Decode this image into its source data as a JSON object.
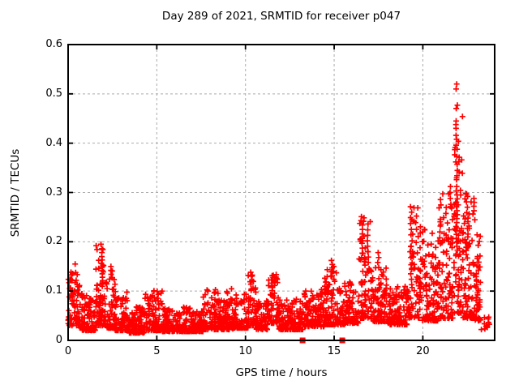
{
  "chart_data": {
    "type": "scatter",
    "title": "Day 289 of 2021, SRMTID for receiver p047",
    "xlabel": "GPS time / hours",
    "ylabel": "SRMTID / TECUs",
    "xlim": [
      0,
      24.05
    ],
    "ylim": [
      0,
      0.6
    ],
    "grid": true,
    "legend": false,
    "xticks": [
      {
        "v": 0,
        "label": "0"
      },
      {
        "v": 5,
        "label": "5"
      },
      {
        "v": 10,
        "label": "10"
      },
      {
        "v": 15,
        "label": "15"
      },
      {
        "v": 20,
        "label": "20"
      }
    ],
    "yticks": [
      {
        "v": 0.0,
        "label": "0"
      },
      {
        "v": 0.1,
        "label": "0.1"
      },
      {
        "v": 0.2,
        "label": "0.2"
      },
      {
        "v": 0.3,
        "label": "0.3"
      },
      {
        "v": 0.4,
        "label": "0.4"
      },
      {
        "v": 0.5,
        "label": "0.5"
      },
      {
        "v": 0.6,
        "label": "0.6"
      }
    ],
    "marker": {
      "shape": "plus",
      "size": 7,
      "color": "#ff0000"
    },
    "colors": {
      "points": "#ff0000",
      "grid": "#ababab",
      "axis": "#000000",
      "background": "#ffffff"
    },
    "series": [
      {
        "name": "srmtid-scatter",
        "marker": "plus",
        "color": "#ff0000",
        "seed": 20211289,
        "density_segments": [
          [
            0.0,
            0.35,
            45,
            0.03,
            0.14,
            1.8
          ],
          [
            0.35,
            0.65,
            35,
            0.03,
            0.155,
            2.0
          ],
          [
            0.65,
            1.55,
            100,
            0.02,
            0.095,
            2.2
          ],
          [
            1.55,
            2.15,
            75,
            0.03,
            0.2,
            1.9
          ],
          [
            2.15,
            2.65,
            55,
            0.025,
            0.15,
            2.2
          ],
          [
            2.65,
            3.45,
            85,
            0.02,
            0.1,
            2.4
          ],
          [
            3.45,
            4.3,
            95,
            0.015,
            0.07,
            2.2
          ],
          [
            4.3,
            5.3,
            105,
            0.02,
            0.105,
            2.4
          ],
          [
            5.3,
            7.6,
            240,
            0.018,
            0.068,
            2.2
          ],
          [
            7.6,
            9.3,
            185,
            0.022,
            0.105,
            2.4
          ],
          [
            9.3,
            10.15,
            90,
            0.025,
            0.095,
            2.3
          ],
          [
            10.15,
            10.6,
            50,
            0.03,
            0.14,
            2.2
          ],
          [
            10.6,
            11.3,
            70,
            0.022,
            0.08,
            2.2
          ],
          [
            11.3,
            11.85,
            55,
            0.035,
            0.135,
            1.9
          ],
          [
            11.85,
            13.25,
            145,
            0.022,
            0.085,
            2.3
          ],
          [
            13.25,
            14.45,
            125,
            0.028,
            0.105,
            2.3
          ],
          [
            14.45,
            15.6,
            120,
            0.032,
            0.15,
            2.2
          ],
          [
            15.6,
            16.4,
            85,
            0.035,
            0.125,
            2.2
          ],
          [
            16.4,
            17.1,
            75,
            0.045,
            0.25,
            1.9
          ],
          [
            17.1,
            18.05,
            95,
            0.038,
            0.15,
            2.3
          ],
          [
            18.05,
            19.2,
            115,
            0.032,
            0.11,
            2.3
          ],
          [
            19.2,
            19.95,
            75,
            0.045,
            0.27,
            1.9
          ],
          [
            19.95,
            20.9,
            105,
            0.04,
            0.23,
            2.3
          ],
          [
            20.9,
            21.7,
            95,
            0.045,
            0.3,
            2.1
          ],
          [
            21.7,
            22.25,
            70,
            0.055,
            0.48,
            1.9
          ],
          [
            22.25,
            22.95,
            85,
            0.045,
            0.31,
            2.2
          ],
          [
            22.95,
            23.25,
            40,
            0.04,
            0.22,
            2.2
          ],
          [
            23.25,
            23.75,
            12,
            0.022,
            0.075,
            2.2
          ]
        ],
        "spike_columns": [
          {
            "x": 1.9,
            "ys": [
              0.195,
              0.186,
              0.178,
              0.17,
              0.163,
              0.156,
              0.149,
              0.142,
              0.135,
              0.128,
              0.121,
              0.114
            ]
          },
          {
            "x": 2.45,
            "ys": [
              0.15,
              0.142,
              0.134
            ]
          },
          {
            "x": 10.32,
            "ys": [
              0.138,
              0.13,
              0.122,
              0.114
            ]
          },
          {
            "x": 11.52,
            "ys": [
              0.131,
              0.123,
              0.116,
              0.108,
              0.101
            ]
          },
          {
            "x": 14.85,
            "ys": [
              0.162,
              0.154,
              0.147,
              0.139,
              0.131
            ]
          },
          {
            "x": 16.55,
            "ys": [
              0.251,
              0.243,
              0.234,
              0.225,
              0.216,
              0.207,
              0.197,
              0.187,
              0.177,
              0.167
            ]
          },
          {
            "x": 16.9,
            "ys": [
              0.236,
              0.224,
              0.213,
              0.202,
              0.191,
              0.18,
              0.169,
              0.158
            ]
          },
          {
            "x": 17.5,
            "ys": [
              0.178,
              0.168,
              0.158,
              0.148
            ]
          },
          {
            "x": 19.35,
            "ys": [
              0.271,
              0.26,
              0.249,
              0.237,
              0.225,
              0.214,
              0.202,
              0.191,
              0.18,
              0.168,
              0.157,
              0.146,
              0.135,
              0.124,
              0.113
            ]
          },
          {
            "x": 20.95,
            "ys": [
              0.232,
              0.22,
              0.208,
              0.196
            ]
          },
          {
            "x": 21.55,
            "ys": [
              0.312,
              0.3,
              0.288,
              0.276
            ]
          },
          {
            "x": 21.9,
            "ys": [
              0.52,
              0.51,
              0.477,
              0.445,
              0.43,
              0.408,
              0.396,
              0.373,
              0.362,
              0.357,
              0.334,
              0.326,
              0.312,
              0.303,
              0.295,
              0.287,
              0.279,
              0.271,
              0.263,
              0.255,
              0.247,
              0.239,
              0.231,
              0.223,
              0.215,
              0.207,
              0.199,
              0.191,
              0.183,
              0.175
            ]
          },
          {
            "x": 22.5,
            "ys": [
              0.292,
              0.281,
              0.27,
              0.259,
              0.248,
              0.21,
              0.199,
              0.188
            ]
          },
          {
            "x": 22.88,
            "ys": [
              0.288,
              0.28,
              0.272,
              0.263
            ]
          },
          {
            "x": 23.05,
            "ys": [
              0.214,
              0.17,
              0.151,
              0.135,
              0.123
            ]
          }
        ]
      },
      {
        "name": "event-flags",
        "marker": "filled-square",
        "color": "#ff0000",
        "points": [
          [
            13.22,
            0
          ],
          [
            15.46,
            0
          ]
        ]
      }
    ]
  }
}
